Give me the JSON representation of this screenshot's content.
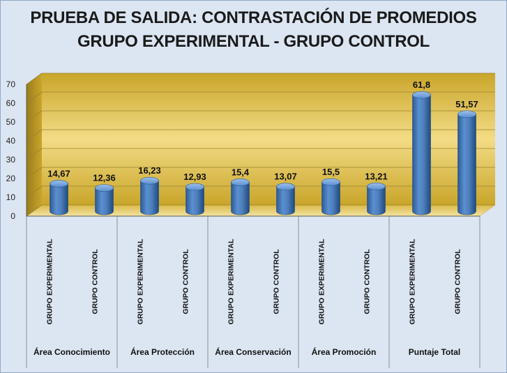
{
  "chart_data": {
    "type": "bar",
    "title": "PRUEBA DE SALIDA: CONTRASTACIÓN DE PROMEDIOS",
    "subtitle": "GRUPO EXPERIMENTAL - GRUPO CONTROL",
    "groups": [
      "Área Conocimiento",
      "Área Protección",
      "Área Conservación",
      "Área Promoción",
      "Puntaje Total"
    ],
    "bars": [
      {
        "group": "Área Conocimiento",
        "label": "GRUPO EXPERIMENTAL",
        "value": 14.67,
        "value_label": "14,67"
      },
      {
        "group": "Área Conocimiento",
        "label": "GRUPO CONTROL",
        "value": 12.36,
        "value_label": "12,36"
      },
      {
        "group": "Área Protección",
        "label": "GRUPO EXPERIMENTAL",
        "value": 16.23,
        "value_label": "16,23"
      },
      {
        "group": "Área Protección",
        "label": "GRUPO CONTROL",
        "value": 12.93,
        "value_label": "12,93"
      },
      {
        "group": "Área Conservación",
        "label": "GRUPO EXPERIMENTAL",
        "value": 15.4,
        "value_label": "15,4"
      },
      {
        "group": "Área Conservación",
        "label": "GRUPO CONTROL",
        "value": 13.07,
        "value_label": "13,07"
      },
      {
        "group": "Área Promoción",
        "label": "GRUPO EXPERIMENTAL",
        "value": 15.5,
        "value_label": "15,5"
      },
      {
        "group": "Área Promoción",
        "label": "GRUPO CONTROL",
        "value": 13.21,
        "value_label": "13,21"
      },
      {
        "group": "Puntaje Total",
        "label": "GRUPO EXPERIMENTAL",
        "value": 61.8,
        "value_label": "61,8"
      },
      {
        "group": "Puntaje Total",
        "label": "GRUPO CONTROL",
        "value": 51.57,
        "value_label": "51,57"
      }
    ],
    "yticks": [
      "0",
      "10",
      "20",
      "30",
      "40",
      "50",
      "60",
      "70"
    ],
    "ylim": [
      0,
      70
    ],
    "grid": true,
    "colors": {
      "bar": "#4f81bd",
      "bar_dark": "#2a5a95",
      "bar_light": "#8db3e2",
      "wall": "#e8c95a",
      "page": "#dce6f2"
    }
  }
}
